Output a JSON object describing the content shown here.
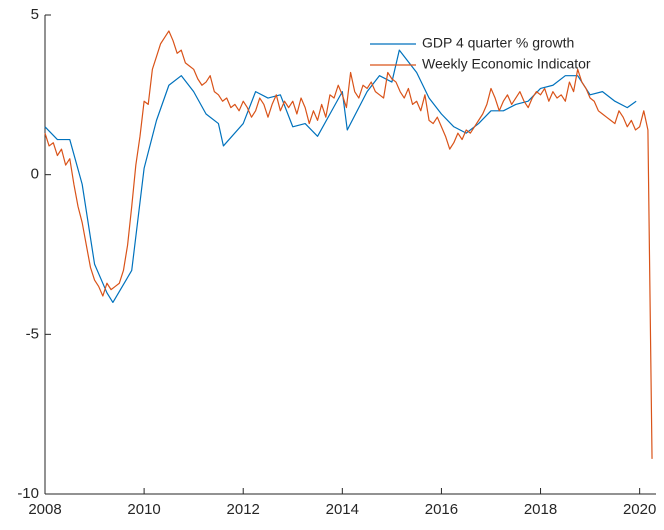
{
  "chart_data": {
    "type": "line",
    "xlim": [
      2008,
      2020.33
    ],
    "ylim": [
      -10,
      5
    ],
    "xticks": [
      2008,
      2010,
      2012,
      2014,
      2016,
      2018,
      2020
    ],
    "yticks": [
      -10,
      -5,
      0,
      5
    ],
    "legend": "northeast",
    "series": [
      {
        "name": "GDP 4 quarter % growth",
        "color": "#0072BD",
        "x": [
          2008,
          2008.25,
          2008.5,
          2008.75,
          2009,
          2009.25,
          2009.37,
          2009.75,
          2010,
          2010.25,
          2010.5,
          2010.75,
          2011,
          2011.25,
          2011.5,
          2011.6,
          2012,
          2012.25,
          2012.5,
          2012.75,
          2013,
          2013.25,
          2013.5,
          2013.75,
          2014,
          2014.1,
          2014.5,
          2014.75,
          2015,
          2015.15,
          2015.5,
          2015.75,
          2016,
          2016.25,
          2016.5,
          2016.75,
          2017,
          2017.25,
          2017.5,
          2017.75,
          2018,
          2018.25,
          2018.5,
          2018.75,
          2019,
          2019.25,
          2019.5,
          2019.75,
          2019.93
        ],
        "values": [
          1.5,
          1.1,
          1.1,
          -0.3,
          -2.8,
          -3.7,
          -4.0,
          -3.0,
          0.2,
          1.7,
          2.8,
          3.1,
          2.6,
          1.9,
          1.6,
          0.9,
          1.6,
          2.6,
          2.4,
          2.5,
          1.5,
          1.6,
          1.2,
          1.9,
          2.6,
          1.4,
          2.6,
          3.1,
          2.9,
          3.9,
          3.2,
          2.4,
          1.9,
          1.5,
          1.3,
          1.6,
          2.0,
          2.0,
          2.2,
          2.3,
          2.7,
          2.8,
          3.1,
          3.1,
          2.5,
          2.6,
          2.3,
          2.1,
          2.3
        ]
      },
      {
        "name": "Weekly Economic Indicator",
        "color": "#D95319",
        "x": [
          2008,
          2008.083,
          2008.167,
          2008.25,
          2008.333,
          2008.417,
          2008.5,
          2008.583,
          2008.667,
          2008.75,
          2008.833,
          2008.917,
          2009,
          2009.083,
          2009.167,
          2009.25,
          2009.333,
          2009.417,
          2009.5,
          2009.583,
          2009.667,
          2009.75,
          2009.833,
          2009.917,
          2010,
          2010.083,
          2010.167,
          2010.25,
          2010.333,
          2010.417,
          2010.5,
          2010.583,
          2010.667,
          2010.75,
          2010.833,
          2010.917,
          2011,
          2011.083,
          2011.167,
          2011.25,
          2011.333,
          2011.417,
          2011.5,
          2011.583,
          2011.667,
          2011.75,
          2011.833,
          2011.917,
          2012,
          2012.083,
          2012.167,
          2012.25,
          2012.333,
          2012.417,
          2012.5,
          2012.583,
          2012.667,
          2012.75,
          2012.833,
          2012.917,
          2013,
          2013.083,
          2013.167,
          2013.25,
          2013.333,
          2013.417,
          2013.5,
          2013.583,
          2013.667,
          2013.75,
          2013.833,
          2013.917,
          2014,
          2014.083,
          2014.167,
          2014.25,
          2014.333,
          2014.417,
          2014.5,
          2014.583,
          2014.667,
          2014.75,
          2014.833,
          2014.917,
          2015,
          2015.083,
          2015.167,
          2015.25,
          2015.333,
          2015.417,
          2015.5,
          2015.583,
          2015.667,
          2015.75,
          2015.833,
          2015.917,
          2016,
          2016.083,
          2016.167,
          2016.25,
          2016.333,
          2016.417,
          2016.5,
          2016.583,
          2016.667,
          2016.75,
          2016.833,
          2016.917,
          2017,
          2017.083,
          2017.167,
          2017.25,
          2017.333,
          2017.417,
          2017.5,
          2017.583,
          2017.667,
          2017.75,
          2017.833,
          2017.917,
          2018,
          2018.083,
          2018.167,
          2018.25,
          2018.333,
          2018.417,
          2018.5,
          2018.583,
          2018.667,
          2018.75,
          2018.833,
          2018.917,
          2019,
          2019.083,
          2019.167,
          2019.25,
          2019.333,
          2019.417,
          2019.5,
          2019.583,
          2019.667,
          2019.75,
          2019.833,
          2019.917,
          2020,
          2020.083,
          2020.167,
          2020.25
        ],
        "values": [
          1.3,
          0.9,
          1.0,
          0.6,
          0.8,
          0.3,
          0.5,
          -0.3,
          -1.0,
          -1.5,
          -2.2,
          -2.9,
          -3.3,
          -3.5,
          -3.8,
          -3.4,
          -3.6,
          -3.5,
          -3.4,
          -3.0,
          -2.2,
          -1.0,
          0.3,
          1.2,
          2.3,
          2.2,
          3.3,
          3.7,
          4.1,
          4.3,
          4.5,
          4.2,
          3.8,
          3.9,
          3.5,
          3.4,
          3.3,
          3.0,
          2.8,
          2.9,
          3.1,
          2.6,
          2.5,
          2.3,
          2.4,
          2.1,
          2.2,
          2.0,
          2.3,
          2.1,
          1.8,
          2.0,
          2.4,
          2.2,
          1.8,
          2.2,
          2.5,
          2.0,
          2.3,
          2.1,
          2.3,
          1.9,
          2.4,
          2.1,
          1.6,
          2.0,
          1.7,
          2.2,
          1.8,
          2.5,
          2.4,
          2.8,
          2.5,
          2.1,
          3.2,
          2.6,
          2.4,
          2.8,
          2.7,
          2.9,
          2.6,
          2.5,
          2.4,
          3.2,
          3.0,
          2.9,
          2.6,
          2.4,
          2.7,
          2.2,
          2.3,
          2.0,
          2.5,
          1.7,
          1.6,
          1.8,
          1.5,
          1.2,
          0.8,
          1.0,
          1.3,
          1.1,
          1.4,
          1.3,
          1.5,
          1.7,
          1.9,
          2.2,
          2.7,
          2.4,
          2.0,
          2.3,
          2.5,
          2.2,
          2.4,
          2.6,
          2.3,
          2.1,
          2.4,
          2.6,
          2.5,
          2.7,
          2.3,
          2.6,
          2.4,
          2.5,
          2.3,
          2.9,
          2.6,
          3.3,
          2.9,
          2.7,
          2.4,
          2.3,
          2.0,
          1.9,
          1.8,
          1.7,
          1.6,
          2.0,
          1.8,
          1.5,
          1.7,
          1.4,
          1.5,
          2.0,
          1.4,
          -8.9
        ]
      }
    ]
  }
}
